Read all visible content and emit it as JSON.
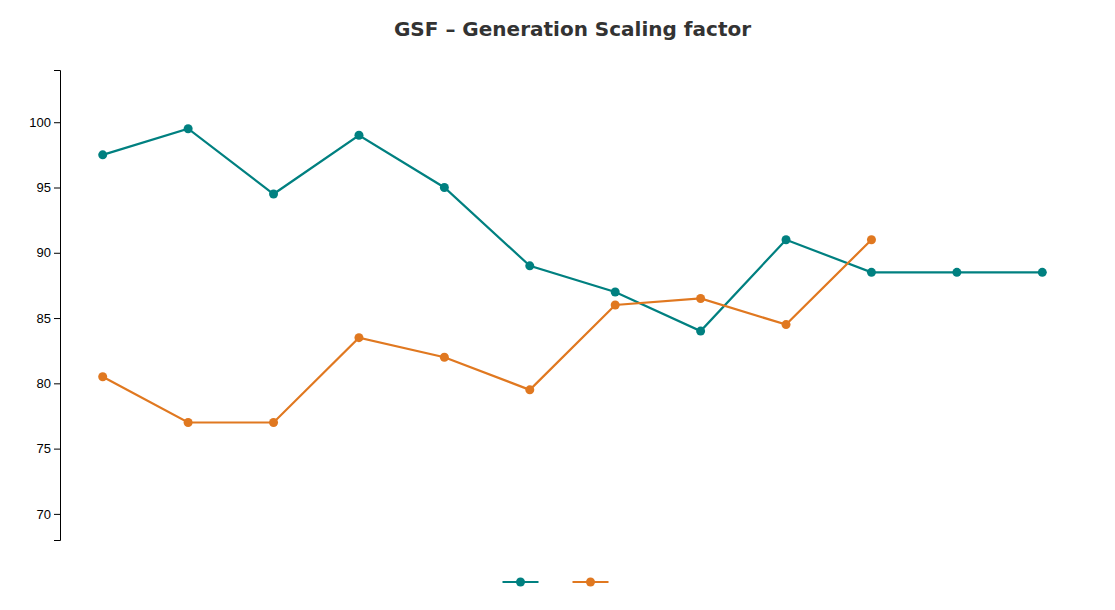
{
  "chart_data": {
    "type": "line",
    "title": "GSF – Generation Scaling factor",
    "categories": [
      null,
      null,
      null,
      null,
      null,
      null,
      null,
      null,
      null,
      null,
      null,
      null
    ],
    "series": [
      {
        "color": "#008080",
        "marker": "circle",
        "values": [
          97.5,
          99.5,
          94.5,
          99.0,
          95.0,
          89.0,
          87.0,
          84.0,
          91.0,
          88.5,
          88.5,
          88.5
        ]
      },
      {
        "color": "#e07820",
        "marker": "circle",
        "values": [
          80.5,
          77.0,
          77.0,
          83.5,
          82.0,
          79.5,
          86.0,
          86.5,
          84.5,
          91.0,
          null,
          null
        ]
      }
    ],
    "ylim": [
      68,
      104
    ],
    "yticks": [
      70,
      75,
      80,
      85,
      90,
      95,
      100
    ],
    "grid": false,
    "legend": "bottom",
    "tick_labels": "y"
  }
}
